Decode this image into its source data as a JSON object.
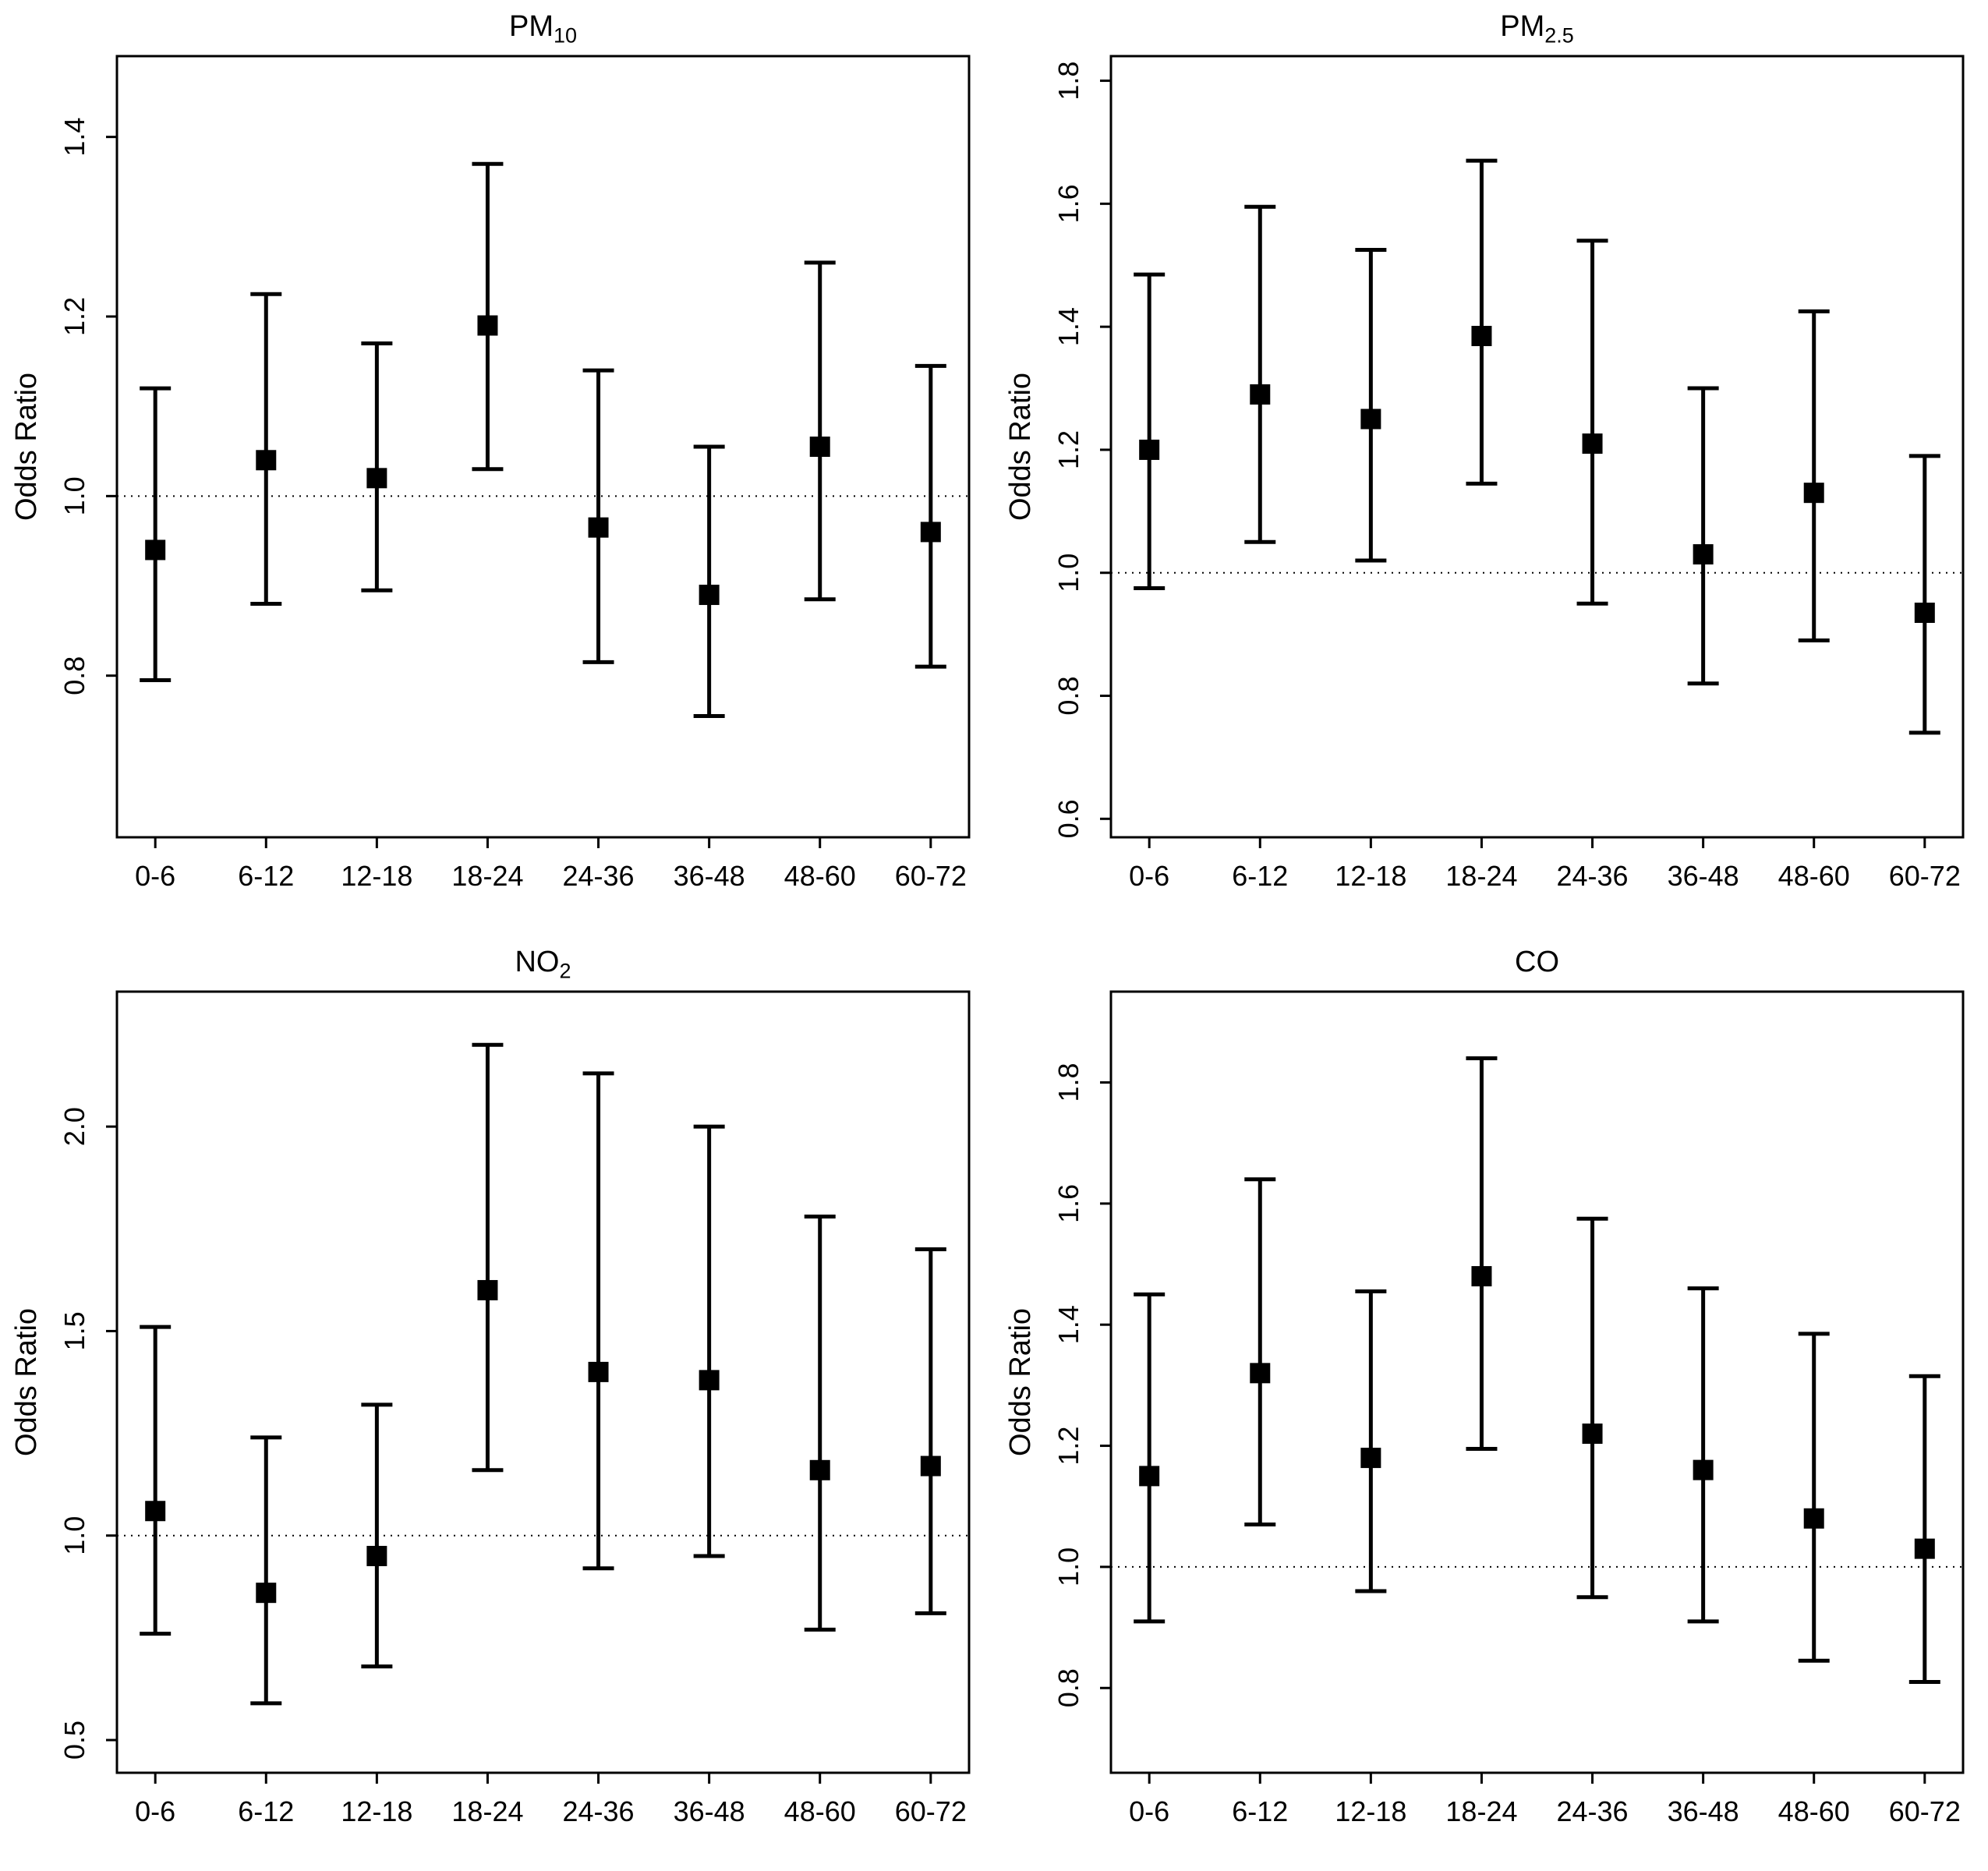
{
  "figure": {
    "background": "#ffffff",
    "foreground": "#000000",
    "layout": "2x2-grid",
    "reference_line_style": "dotted"
  },
  "chart_data": [
    {
      "id": "pm10",
      "type": "scatter",
      "title_main": "PM",
      "title_sub": "10",
      "xlabel": "",
      "ylabel": "Odds Ratio",
      "categories": [
        "0-6",
        "6-12",
        "12-18",
        "18-24",
        "24-36",
        "36-48",
        "48-60",
        "60-72"
      ],
      "ytick_labels": [
        "0.8",
        "1.0",
        "1.2",
        "1.4"
      ],
      "ylim": [
        0.62,
        1.49
      ],
      "ref_line": 1.0,
      "grid": false,
      "legend": "none",
      "series": [
        {
          "name": "odds_ratio",
          "values": [
            0.94,
            1.04,
            1.02,
            1.19,
            0.965,
            0.89,
            1.055,
            0.96
          ],
          "ci_low": [
            0.795,
            0.88,
            0.895,
            1.03,
            0.815,
            0.755,
            0.885,
            0.81
          ],
          "ci_high": [
            1.12,
            1.225,
            1.17,
            1.37,
            1.14,
            1.055,
            1.26,
            1.145
          ]
        }
      ]
    },
    {
      "id": "pm25",
      "type": "scatter",
      "title_main": "PM",
      "title_sub": "2.5",
      "xlabel": "",
      "ylabel": "Odds Ratio",
      "categories": [
        "0-6",
        "6-12",
        "12-18",
        "18-24",
        "24-36",
        "36-48",
        "48-60",
        "60-72"
      ],
      "ytick_labels": [
        "0.6",
        "0.8",
        "1.0",
        "1.2",
        "1.4",
        "1.6",
        "1.8"
      ],
      "ylim": [
        0.57,
        1.84
      ],
      "ref_line": 1.0,
      "grid": false,
      "legend": "none",
      "series": [
        {
          "name": "odds_ratio",
          "values": [
            1.2,
            1.29,
            1.25,
            1.385,
            1.21,
            1.03,
            1.13,
            0.935
          ],
          "ci_low": [
            0.975,
            1.05,
            1.02,
            1.145,
            0.95,
            0.82,
            0.89,
            0.74
          ],
          "ci_high": [
            1.485,
            1.595,
            1.525,
            1.67,
            1.54,
            1.3,
            1.425,
            1.19
          ]
        }
      ]
    },
    {
      "id": "no2",
      "type": "scatter",
      "title_main": "NO",
      "title_sub": "2",
      "xlabel": "",
      "ylabel": "Odds Ratio",
      "categories": [
        "0-6",
        "6-12",
        "12-18",
        "18-24",
        "24-36",
        "36-48",
        "48-60",
        "60-72"
      ],
      "ytick_labels": [
        "0.5",
        "1.0",
        "1.5",
        "2.0"
      ],
      "ylim": [
        0.42,
        2.33
      ],
      "ref_line": 1.0,
      "grid": false,
      "legend": "none",
      "series": [
        {
          "name": "odds_ratio",
          "values": [
            1.06,
            0.86,
            0.95,
            1.6,
            1.4,
            1.38,
            1.16,
            1.17
          ],
          "ci_low": [
            0.76,
            0.59,
            0.68,
            1.16,
            0.92,
            0.95,
            0.77,
            0.81
          ],
          "ci_high": [
            1.51,
            1.24,
            1.32,
            2.2,
            2.13,
            2.0,
            1.78,
            1.7
          ]
        }
      ]
    },
    {
      "id": "co",
      "type": "scatter",
      "title_main": "CO",
      "title_sub": "",
      "xlabel": "",
      "ylabel": "Odds Ratio",
      "categories": [
        "0-6",
        "6-12",
        "12-18",
        "18-24",
        "24-36",
        "36-48",
        "48-60",
        "60-72"
      ],
      "ytick_labels": [
        "0.8",
        "1.0",
        "1.2",
        "1.4",
        "1.6",
        "1.8"
      ],
      "ylim": [
        0.66,
        1.95
      ],
      "ref_line": 1.0,
      "grid": false,
      "legend": "none",
      "series": [
        {
          "name": "odds_ratio",
          "values": [
            1.15,
            1.32,
            1.18,
            1.48,
            1.22,
            1.16,
            1.08,
            1.03
          ],
          "ci_low": [
            0.91,
            1.07,
            0.96,
            1.195,
            0.95,
            0.91,
            0.845,
            0.81
          ],
          "ci_high": [
            1.45,
            1.64,
            1.455,
            1.84,
            1.575,
            1.46,
            1.385,
            1.315
          ]
        }
      ]
    }
  ]
}
